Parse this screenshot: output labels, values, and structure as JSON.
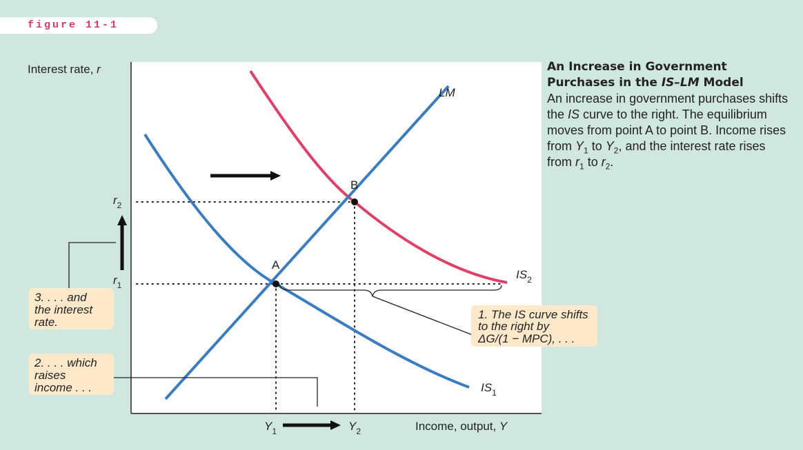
{
  "figure_label": "figure 11-1",
  "axes": {
    "y_label": {
      "text": "Interest rate, ",
      "var": "r"
    },
    "x_label": {
      "text": "Income, output, ",
      "var": "Y"
    }
  },
  "curves": {
    "lm": "LM",
    "is1": {
      "main": "IS",
      "sub": "1"
    },
    "is2": {
      "main": "IS",
      "sub": "2"
    }
  },
  "points": {
    "a": "A",
    "b": "B"
  },
  "levels": {
    "r1": {
      "main": "r",
      "sub": "1"
    },
    "r2": {
      "main": "r",
      "sub": "2"
    },
    "y1": {
      "main": "Y",
      "sub": "1"
    },
    "y2": {
      "main": "Y",
      "sub": "2"
    }
  },
  "callouts": [
    {
      "lines": [
        "1. The IS curve shifts",
        "to the right by",
        "ΔG/(1 − MPC), . . ."
      ]
    },
    {
      "lines": [
        "2. . . . which",
        "raises",
        "income . . ."
      ]
    },
    {
      "lines": [
        "3. . . . and",
        "the interest",
        "rate."
      ]
    }
  ],
  "caption": {
    "title": [
      "An Increase in Government Purchases in the ",
      "IS–LM",
      " Model"
    ],
    "body": [
      "An increase in government purchases shifts the ",
      "IS",
      " curve to the right. The equilibrium moves from point A to point B. Income rises from ",
      "Y",
      "1",
      " to ",
      "Y",
      "2",
      ", and the interest rate rises from ",
      "r",
      "1",
      " to ",
      "r",
      "2",
      "."
    ]
  }
}
